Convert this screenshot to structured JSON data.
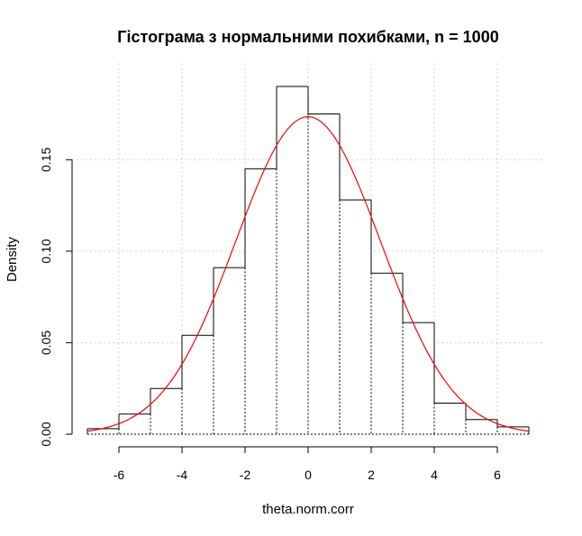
{
  "chart_data": {
    "type": "bar",
    "title": "Гістограма з нормальними похибками, n = 1000",
    "xlabel": "theta.norm.corr",
    "ylabel": "Density",
    "xlim": [
      -7,
      7
    ],
    "ylim": [
      0,
      0.19
    ],
    "x_ticks": [
      -6,
      -4,
      -2,
      0,
      2,
      4,
      6
    ],
    "x_tick_labels": [
      "-6",
      "-4",
      "-2",
      "0",
      "2",
      "4",
      "6"
    ],
    "y_ticks": [
      0.0,
      0.05,
      0.1,
      0.15
    ],
    "y_tick_labels": [
      "0.00",
      "0.05",
      "0.10",
      "0.15"
    ],
    "grid": true,
    "bins": [
      {
        "x0": -7,
        "x1": -6,
        "density": 0.003
      },
      {
        "x0": -6,
        "x1": -5,
        "density": 0.011
      },
      {
        "x0": -5,
        "x1": -4,
        "density": 0.025
      },
      {
        "x0": -4,
        "x1": -3,
        "density": 0.054
      },
      {
        "x0": -3,
        "x1": -2,
        "density": 0.091
      },
      {
        "x0": -2,
        "x1": -1,
        "density": 0.145
      },
      {
        "x0": -1,
        "x1": 0,
        "density": 0.19
      },
      {
        "x0": 0,
        "x1": 1,
        "density": 0.175
      },
      {
        "x0": 1,
        "x1": 2,
        "density": 0.128
      },
      {
        "x0": 2,
        "x1": 3,
        "density": 0.088
      },
      {
        "x0": 3,
        "x1": 4,
        "density": 0.061
      },
      {
        "x0": 4,
        "x1": 5,
        "density": 0.017
      },
      {
        "x0": 5,
        "x1": 6,
        "density": 0.008
      },
      {
        "x0": 6,
        "x1": 7,
        "density": 0.004
      }
    ],
    "normal_curve": {
      "mean": 0.0,
      "sd": 2.3,
      "color": "#ff0000"
    },
    "bar_fill": "#ffffff",
    "bar_stroke": "#000000",
    "grid_color": "#d3d3d3"
  }
}
